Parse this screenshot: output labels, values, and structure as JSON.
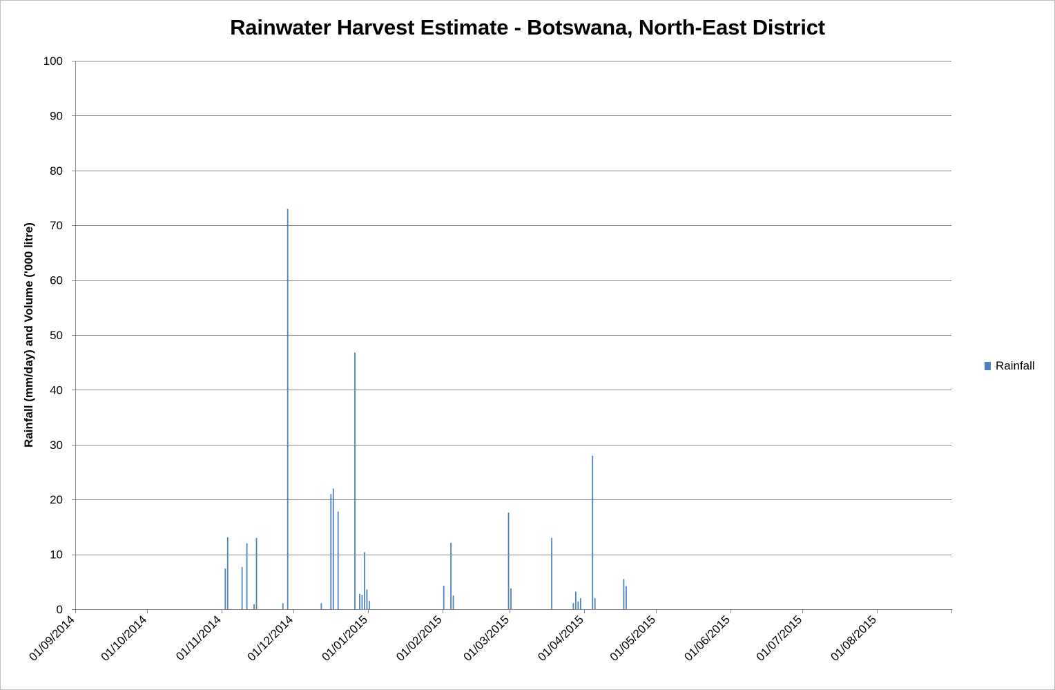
{
  "chart_data": {
    "type": "bar",
    "title": "Rainwater Harvest Estimate - Botswana, North-East District",
    "ylabel": "Rainfall (mm/day) and Volume ('000 litre)",
    "xlabel": "",
    "ylim": [
      0,
      100
    ],
    "y_ticks": [
      0,
      10,
      20,
      30,
      40,
      50,
      60,
      70,
      80,
      90,
      100
    ],
    "x_range": [
      "2014-09-01",
      "2015-08-31"
    ],
    "x_tick_labels": [
      "01/09/2014",
      "01/10/2014",
      "01/11/2014",
      "01/12/2014",
      "01/01/2015",
      "01/02/2015",
      "01/03/2015",
      "01/04/2015",
      "01/05/2015",
      "01/06/2015",
      "01/07/2015",
      "01/08/2015"
    ],
    "grid": true,
    "legend_position": "right",
    "series": [
      {
        "name": "Rainfall",
        "color": "#4f81bd",
        "points": [
          {
            "x": "2014-11-02",
            "y": 7.4
          },
          {
            "x": "2014-11-03",
            "y": 13.1
          },
          {
            "x": "2014-11-09",
            "y": 7.7
          },
          {
            "x": "2014-11-11",
            "y": 12.0
          },
          {
            "x": "2014-11-14",
            "y": 0.9
          },
          {
            "x": "2014-11-15",
            "y": 13.0
          },
          {
            "x": "2014-11-26",
            "y": 1.1
          },
          {
            "x": "2014-11-28",
            "y": 73.0
          },
          {
            "x": "2014-12-12",
            "y": 1.1
          },
          {
            "x": "2014-12-16",
            "y": 21.0
          },
          {
            "x": "2014-12-17",
            "y": 22.0
          },
          {
            "x": "2014-12-19",
            "y": 17.8
          },
          {
            "x": "2014-12-26",
            "y": 46.8
          },
          {
            "x": "2014-12-28",
            "y": 2.8
          },
          {
            "x": "2014-12-29",
            "y": 2.6
          },
          {
            "x": "2014-12-30",
            "y": 10.4
          },
          {
            "x": "2014-12-31",
            "y": 3.6
          },
          {
            "x": "2015-01-01",
            "y": 1.5
          },
          {
            "x": "2015-02-01",
            "y": 4.3
          },
          {
            "x": "2015-02-04",
            "y": 12.1
          },
          {
            "x": "2015-02-05",
            "y": 2.5
          },
          {
            "x": "2015-02-28",
            "y": 17.6
          },
          {
            "x": "2015-03-01",
            "y": 3.8
          },
          {
            "x": "2015-03-18",
            "y": 13.0
          },
          {
            "x": "2015-03-27",
            "y": 1.1
          },
          {
            "x": "2015-03-28",
            "y": 3.2
          },
          {
            "x": "2015-03-29",
            "y": 1.4
          },
          {
            "x": "2015-03-30",
            "y": 2.0
          },
          {
            "x": "2015-04-04",
            "y": 28.0
          },
          {
            "x": "2015-04-05",
            "y": 2.0
          },
          {
            "x": "2015-04-17",
            "y": 5.5
          },
          {
            "x": "2015-04-18",
            "y": 4.2
          }
        ]
      }
    ]
  }
}
